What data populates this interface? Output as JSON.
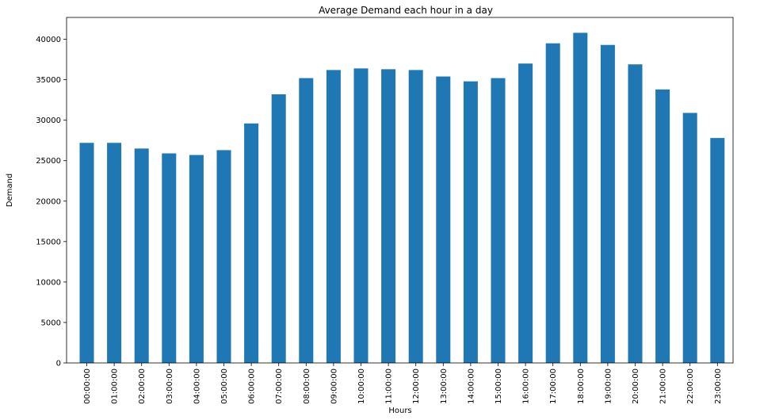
{
  "chart_data": {
    "type": "bar",
    "title": "Average Demand each hour in a day",
    "xlabel": "Hours",
    "ylabel": "Demand",
    "categories": [
      "00:00:00",
      "01:00:00",
      "02:00:00",
      "03:00:00",
      "04:00:00",
      "05:00:00",
      "06:00:00",
      "07:00:00",
      "08:00:00",
      "09:00:00",
      "10:00:00",
      "11:00:00",
      "12:00:00",
      "13:00:00",
      "14:00:00",
      "15:00:00",
      "16:00:00",
      "17:00:00",
      "18:00:00",
      "19:00:00",
      "20:00:00",
      "21:00:00",
      "22:00:00",
      "23:00:00"
    ],
    "values": [
      27200,
      27200,
      26500,
      25900,
      25700,
      26300,
      29600,
      33200,
      35200,
      36200,
      36400,
      36300,
      36200,
      35400,
      34800,
      35200,
      37000,
      39500,
      40800,
      39300,
      36900,
      33800,
      30900,
      27800
    ],
    "ylim": [
      0,
      42700
    ],
    "yticks": [
      0,
      5000,
      10000,
      15000,
      20000,
      25000,
      30000,
      35000,
      40000
    ],
    "bar_color": "#1f77b4",
    "grid": false,
    "x_tick_rotation": "vertical"
  }
}
